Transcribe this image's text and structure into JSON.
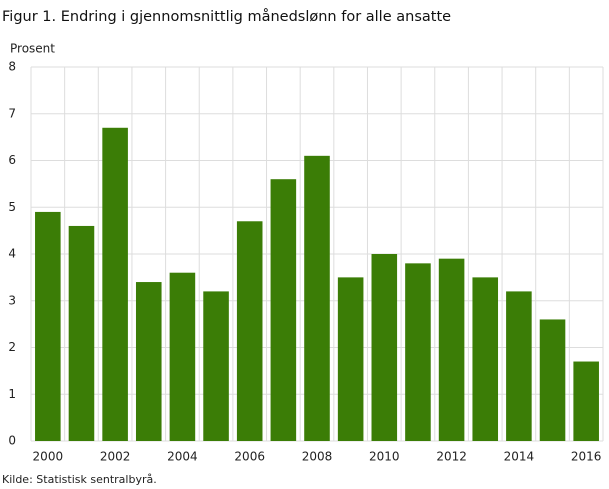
{
  "chart_data": {
    "type": "bar",
    "title": "Figur 1. Endring i gjennomsnittlig månedslønn for alle ansatte",
    "y_label": "Prosent",
    "source": "Kilde: Statistisk sentralbyrå.",
    "categories": [
      "2000",
      null,
      "2002",
      null,
      "2004",
      null,
      "2006",
      null,
      "2008",
      null,
      "2010",
      null,
      "2012",
      null,
      "2014",
      null,
      "2016"
    ],
    "values": [
      4.9,
      4.6,
      6.7,
      3.4,
      3.6,
      3.2,
      4.7,
      5.6,
      6.1,
      3.5,
      4.0,
      3.8,
      3.9,
      3.5,
      3.2,
      2.6,
      1.7
    ],
    "color": "#3b7d06",
    "ylim": [
      0,
      8
    ],
    "yticks": [
      0,
      1,
      2,
      3,
      4,
      5,
      6,
      7,
      8
    ],
    "grid": true
  }
}
